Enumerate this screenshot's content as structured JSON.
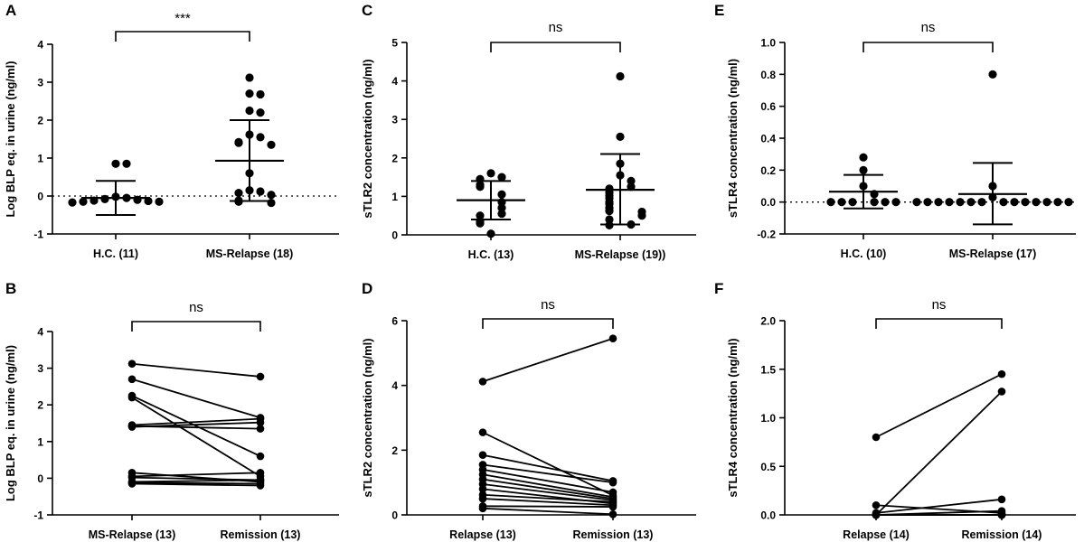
{
  "figure": {
    "background": "#ffffff",
    "ink": "#000000"
  },
  "chart_data": [
    {
      "panel": "A",
      "type": "scatter",
      "ylabel": "Log BLP eq. in urine (ng/ml)",
      "ylim": [
        -1,
        4
      ],
      "yticks": [
        -1,
        0,
        1,
        2,
        3,
        4
      ],
      "ytick_labels": [
        "-1",
        "0",
        "1",
        "2",
        "3",
        "4"
      ],
      "categories": [
        "H.C. (11)",
        "MS-Relapse (18)"
      ],
      "reference_line": 0,
      "significance": "***",
      "groups": [
        {
          "name": "H.C. (11)",
          "mean": -0.05,
          "sd_low": -0.5,
          "sd_high": 0.4,
          "values": [
            0.85,
            0.85,
            -0.02,
            -0.05,
            -0.08,
            -0.1,
            -0.12,
            -0.13,
            -0.15,
            -0.15,
            -0.17
          ]
        },
        {
          "name": "MS-Relapse (18)",
          "mean": 0.93,
          "sd_low": -0.13,
          "sd_high": 2.0,
          "values": [
            3.12,
            2.7,
            2.68,
            2.25,
            2.2,
            1.62,
            1.55,
            1.42,
            1.4,
            1.35,
            0.6,
            0.15,
            0.12,
            0.08,
            0.03,
            -0.12,
            -0.15,
            -0.18
          ]
        }
      ]
    },
    {
      "panel": "B",
      "type": "paired-line",
      "ylabel": "Log BLP eq. in urine (ng/ml)",
      "ylim": [
        -1,
        4
      ],
      "yticks": [
        -1,
        0,
        1,
        2,
        3,
        4
      ],
      "ytick_labels": [
        "-1",
        "0",
        "1",
        "2",
        "3",
        "4"
      ],
      "categories": [
        "MS-Relapse (13)",
        "Remission (13)"
      ],
      "significance": "ns",
      "pairs": [
        [
          3.12,
          2.77
        ],
        [
          2.7,
          1.65
        ],
        [
          2.25,
          0.6
        ],
        [
          2.2,
          0.05
        ],
        [
          1.45,
          1.62
        ],
        [
          1.42,
          1.35
        ],
        [
          1.4,
          1.52
        ],
        [
          0.15,
          -0.1
        ],
        [
          0.05,
          0.15
        ],
        [
          0.02,
          -0.05
        ],
        [
          -0.1,
          -0.05
        ],
        [
          -0.12,
          -0.15
        ],
        [
          -0.15,
          -0.2
        ]
      ]
    },
    {
      "panel": "C",
      "type": "scatter",
      "ylabel": "sTLR2 concentration (ng/ml)",
      "ylim": [
        0,
        5
      ],
      "yticks": [
        0,
        1,
        2,
        3,
        4,
        5
      ],
      "ytick_labels": [
        "0",
        "1",
        "2",
        "3",
        "4",
        "5"
      ],
      "categories": [
        "H.C. (13)",
        "MS-Relapse (19))"
      ],
      "significance": "ns",
      "groups": [
        {
          "name": "H.C. (13)",
          "mean": 0.9,
          "sd_low": 0.4,
          "sd_high": 1.4,
          "values": [
            1.6,
            1.5,
            1.45,
            1.3,
            1.25,
            1.05,
            0.85,
            0.7,
            0.55,
            0.5,
            0.35,
            0.3,
            0.03
          ]
        },
        {
          "name": "MS-Relapse (19))",
          "mean": 1.17,
          "sd_low": 0.27,
          "sd_high": 2.1,
          "values": [
            4.12,
            2.55,
            1.85,
            1.55,
            1.4,
            1.25,
            1.2,
            1.1,
            1.02,
            0.95,
            0.85,
            0.8,
            0.7,
            0.62,
            0.6,
            0.5,
            0.4,
            0.27,
            0.25
          ]
        }
      ]
    },
    {
      "panel": "D",
      "type": "paired-line",
      "ylabel": "sTLR2 concentration (ng/ml)",
      "ylim": [
        0,
        6
      ],
      "yticks": [
        0,
        2,
        4,
        6
      ],
      "ytick_labels": [
        "0",
        "2",
        "4",
        "6"
      ],
      "categories": [
        "Relapse (13)",
        "Remission (13)"
      ],
      "significance": "ns",
      "pairs": [
        [
          4.12,
          5.45
        ],
        [
          2.55,
          0.6
        ],
        [
          1.85,
          1.05
        ],
        [
          1.55,
          1.0
        ],
        [
          1.4,
          0.7
        ],
        [
          1.25,
          0.55
        ],
        [
          1.1,
          0.5
        ],
        [
          0.95,
          0.45
        ],
        [
          0.8,
          0.35
        ],
        [
          0.62,
          0.4
        ],
        [
          0.5,
          0.3
        ],
        [
          0.27,
          0.25
        ],
        [
          0.2,
          0.02
        ]
      ]
    },
    {
      "panel": "E",
      "type": "scatter",
      "ylabel": "sTLR4 concentration (ng/ml)",
      "ylim": [
        -0.2,
        1.0
      ],
      "yticks": [
        -0.2,
        0,
        0.2,
        0.4,
        0.6,
        0.8,
        1.0
      ],
      "ytick_labels": [
        "-0.2",
        "0.0",
        "0.2",
        "0.4",
        "0.6",
        "0.8",
        "1.0"
      ],
      "categories": [
        "H.C. (10)",
        "MS-Relapse (17)"
      ],
      "reference_line": 0,
      "significance": "ns",
      "groups": [
        {
          "name": "H.C. (10)",
          "mean": 0.065,
          "sd_low": -0.04,
          "sd_high": 0.17,
          "values": [
            0.28,
            0.2,
            0.1,
            0.05,
            0.0,
            0.0,
            0.0,
            0.0,
            0.0,
            0.0
          ]
        },
        {
          "name": "MS-Relapse (17)",
          "mean": 0.05,
          "sd_low": -0.14,
          "sd_high": 0.245,
          "values": [
            0.8,
            0.1,
            0.03,
            0.0,
            0.0,
            0.0,
            0.0,
            0.0,
            0.0,
            0.0,
            0.0,
            0.0,
            0.0,
            0.0,
            0.0,
            0.0,
            0.0
          ]
        }
      ]
    },
    {
      "panel": "F",
      "type": "paired-line",
      "ylabel": "sTLR4 concentration (ng/ml)",
      "ylim": [
        0,
        2.0
      ],
      "yticks": [
        0,
        0.5,
        1.0,
        1.5,
        2.0
      ],
      "ytick_labels": [
        "0.0",
        "0.5",
        "1.0",
        "1.5",
        "2.0"
      ],
      "categories": [
        "Relapse (14)",
        "Remission (14)"
      ],
      "significance": "ns",
      "pairs": [
        [
          0.8,
          1.45
        ],
        [
          0.0,
          1.27
        ],
        [
          0.1,
          0.02
        ],
        [
          0.02,
          0.16
        ],
        [
          0.0,
          0.04
        ],
        [
          0.0,
          0.0
        ],
        [
          0.0,
          0.0
        ],
        [
          0.0,
          0.0
        ],
        [
          0.0,
          0.0
        ],
        [
          0.0,
          0.0
        ],
        [
          0.0,
          0.0
        ],
        [
          0.0,
          0.0
        ],
        [
          0.0,
          0.0
        ],
        [
          0.0,
          0.0
        ]
      ]
    }
  ]
}
